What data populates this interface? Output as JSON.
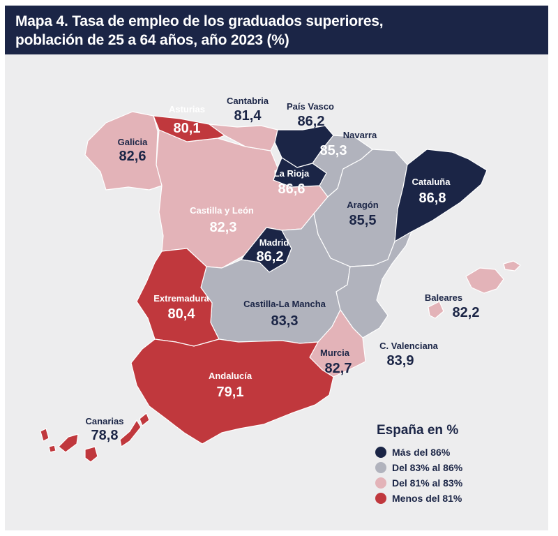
{
  "title": {
    "line1": "Mapa 4. Tasa de empleo de los graduados superiores,",
    "line2": "población de 25 a 64 años, año 2023 (%)"
  },
  "colors": {
    "more_86": "#1b2546",
    "from_83_to_86": "#b1b3bd",
    "from_81_to_83": "#e3b3b8",
    "less_81": "#c0383d",
    "background": "#ededee",
    "title_bar": "#1b2546"
  },
  "regions": [
    {
      "id": "galicia",
      "name": "Galicia",
      "value": "82,6",
      "class": "from_81_to_83"
    },
    {
      "id": "asturias",
      "name": "Asturias",
      "value": "80,1",
      "class": "less_81"
    },
    {
      "id": "cantabria",
      "name": "Cantabria",
      "value": "81,4",
      "class": "from_81_to_83"
    },
    {
      "id": "pais-vasco",
      "name": "País Vasco",
      "value": "86,2",
      "class": "more_86"
    },
    {
      "id": "navarra",
      "name": "Navarra",
      "value": "85,3",
      "class": "from_83_to_86"
    },
    {
      "id": "la-rioja",
      "name": "La Rioja",
      "value": "86,6",
      "class": "more_86"
    },
    {
      "id": "castilla-leon",
      "name": "Castilla y León",
      "value": "82,3",
      "class": "from_81_to_83"
    },
    {
      "id": "aragon",
      "name": "Aragón",
      "value": "85,5",
      "class": "from_83_to_86"
    },
    {
      "id": "cataluna",
      "name": "Cataluña",
      "value": "86,8",
      "class": "more_86"
    },
    {
      "id": "madrid",
      "name": "Madrid",
      "value": "86,2",
      "class": "more_86"
    },
    {
      "id": "extremadura",
      "name": "Extremadura",
      "value": "80,4",
      "class": "less_81"
    },
    {
      "id": "castilla-la-mancha",
      "name": "Castilla-La Mancha",
      "value": "83,3",
      "class": "from_83_to_86"
    },
    {
      "id": "c-valenciana",
      "name": "C. Valenciana",
      "value": "83,9",
      "class": "from_83_to_86"
    },
    {
      "id": "baleares",
      "name": "Baleares",
      "value": "82,2",
      "class": "from_81_to_83"
    },
    {
      "id": "murcia",
      "name": "Murcia",
      "value": "82,7",
      "class": "from_81_to_83"
    },
    {
      "id": "andalucia",
      "name": "Andalucía",
      "value": "79,1",
      "class": "less_81"
    },
    {
      "id": "canarias",
      "name": "Canarias",
      "value": "78,8",
      "class": "less_81"
    }
  ],
  "legend": {
    "title": "España en %",
    "items": [
      {
        "key": "more_86",
        "label": "Más del 86%"
      },
      {
        "key": "from_83_to_86",
        "label": "Del 83% al 86%"
      },
      {
        "key": "from_81_to_83",
        "label": "Del 81% al 83%"
      },
      {
        "key": "less_81",
        "label": "Menos del 81%"
      }
    ]
  }
}
